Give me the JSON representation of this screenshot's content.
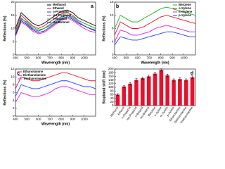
{
  "chart_data": [
    {
      "type": "line",
      "panel_label": "a",
      "xlabel": "Wavelength (nm)",
      "ylabel": "Reflections (%)",
      "x": [
        400,
        450,
        500,
        550,
        600,
        650,
        700,
        750,
        800,
        850,
        900,
        950,
        1000,
        1050,
        1100
      ],
      "xlim": [
        400,
        1100
      ],
      "xticks": [
        400,
        500,
        600,
        700,
        800,
        900,
        1000
      ],
      "ylim": [
        0,
        20
      ],
      "yticks": [
        0,
        5,
        10,
        15,
        20
      ],
      "legend": "upper center",
      "series": [
        {
          "name": "Methanol",
          "color": "#000000",
          "values": [
            10,
            16,
            14,
            12,
            11,
            12,
            13.5,
            15,
            16.5,
            17,
            16,
            14,
            13,
            12,
            11
          ]
        },
        {
          "name": "Ethanol",
          "color": "#e8112d",
          "values": [
            9,
            15,
            13,
            11,
            10,
            11,
            12.5,
            14,
            15.5,
            16,
            15,
            13,
            12,
            11,
            10
          ]
        },
        {
          "name": "n-Propanol",
          "color": "#1f3fff",
          "values": [
            8,
            14,
            12,
            10,
            9,
            10,
            11.5,
            13,
            14.5,
            15,
            14,
            12.5,
            11,
            10,
            9.5
          ]
        },
        {
          "name": "iso-Propanol",
          "color": "#e020d0",
          "values": [
            7,
            12.5,
            11,
            9,
            8,
            8.5,
            10,
            11.5,
            13,
            14,
            13,
            11.5,
            10,
            9,
            8.5
          ]
        },
        {
          "name": "n-Butanol",
          "color": "#1db31d",
          "values": [
            8.5,
            13.5,
            12.5,
            10.5,
            9.5,
            10,
            11,
            12.5,
            14,
            15,
            14.5,
            13,
            12,
            11,
            10
          ]
        },
        {
          "name": "iso-Butanol",
          "color": "#1a1a80",
          "values": [
            7.5,
            13,
            11.5,
            9.5,
            8.5,
            9,
            10.5,
            12,
            13.5,
            14.5,
            13.5,
            12,
            11,
            10,
            9
          ]
        }
      ]
    },
    {
      "type": "line",
      "panel_label": "b",
      "xlabel": "Wavelength (nm)",
      "ylabel": "Reflections (%)",
      "x": [
        400,
        450,
        500,
        550,
        600,
        650,
        700,
        750,
        800,
        850,
        900,
        950,
        1000,
        1050,
        1100
      ],
      "xlim": [
        400,
        1100
      ],
      "xticks": [
        400,
        500,
        600,
        700,
        800,
        900,
        1000
      ],
      "ylim": [
        0,
        16
      ],
      "yticks": [
        0,
        4,
        8,
        12,
        16
      ],
      "legend": "upper right",
      "series": [
        {
          "name": "Benzene",
          "color": "#1db31d",
          "values": [
            8,
            12,
            11,
            10,
            10,
            11,
            12,
            13,
            14,
            14.5,
            14,
            13.5,
            13,
            12.5,
            12
          ]
        },
        {
          "name": "o-Xylene",
          "color": "#e8112d",
          "values": [
            6,
            10,
            9,
            8,
            8,
            8.5,
            9.5,
            10.5,
            11.5,
            12,
            11.5,
            11,
            10.5,
            10,
            9.5
          ]
        },
        {
          "name": "m-Xylene",
          "color": "#e020d0",
          "values": [
            4,
            7.5,
            7,
            6,
            6,
            6.5,
            7,
            8,
            8.5,
            9,
            8.5,
            8,
            7.5,
            7,
            7
          ]
        },
        {
          "name": "p-Xylene",
          "color": "#1f3fff",
          "values": [
            3,
            5.5,
            5,
            4.5,
            4.5,
            5,
            5.5,
            6,
            6.5,
            7,
            7,
            6.5,
            6,
            5.5,
            5.5
          ]
        }
      ]
    },
    {
      "type": "line",
      "panel_label": "c",
      "xlabel": "Wavelength (nm)",
      "ylabel": "Reflections (%)",
      "x": [
        400,
        450,
        500,
        550,
        600,
        650,
        700,
        750,
        800,
        850,
        900,
        950,
        1000,
        1050,
        1100
      ],
      "xlim": [
        400,
        1100
      ],
      "xticks": [
        400,
        500,
        600,
        700,
        800,
        900,
        1000
      ],
      "ylim": [
        0,
        12
      ],
      "yticks": [
        0,
        2,
        4,
        6,
        8,
        10,
        12
      ],
      "legend": "upper left",
      "series": [
        {
          "name": "Ethanolamine",
          "color": "#e8112d",
          "values": [
            7,
            10,
            9.5,
            9,
            9,
            9.5,
            10,
            10.5,
            11,
            11,
            10.5,
            10,
            9.5,
            9,
            9
          ]
        },
        {
          "name": "Diethanolamine",
          "color": "#1f3fff",
          "values": [
            5,
            8,
            7.5,
            7,
            7,
            7.5,
            8,
            8.5,
            9,
            9,
            8.5,
            8,
            7.5,
            7.5,
            7
          ]
        },
        {
          "name": "Triethanolamine",
          "color": "#e020d0",
          "values": [
            3.5,
            6,
            5.5,
            5,
            5,
            5.5,
            6,
            7,
            7.5,
            7.5,
            7,
            6.5,
            6,
            5.5,
            5.5
          ]
        }
      ]
    },
    {
      "type": "bar",
      "panel_label": "d",
      "ylabel": "Stopband shift (nm)",
      "categories": [
        "Methanol",
        "Ethanol",
        "n-Propanol",
        "iso-Propanol",
        "n-Butanol",
        "iso-Butanol",
        "Benzene",
        "o-Xylene",
        "m-Xylene",
        "p-Xylene",
        "Ethanolamine",
        "Diethanolamine",
        "Triethanolamine"
      ],
      "values": [
        60,
        105,
        120,
        140,
        150,
        160,
        175,
        195,
        165,
        140,
        145,
        140,
        155
      ],
      "errors": [
        5,
        6,
        6,
        7,
        6,
        7,
        8,
        6,
        7,
        6,
        7,
        6,
        7
      ],
      "color": "#e8112d",
      "ylim": [
        0,
        200
      ],
      "yticks": [
        0,
        20,
        40,
        60,
        80,
        100,
        120,
        140,
        160,
        180,
        200
      ]
    }
  ]
}
